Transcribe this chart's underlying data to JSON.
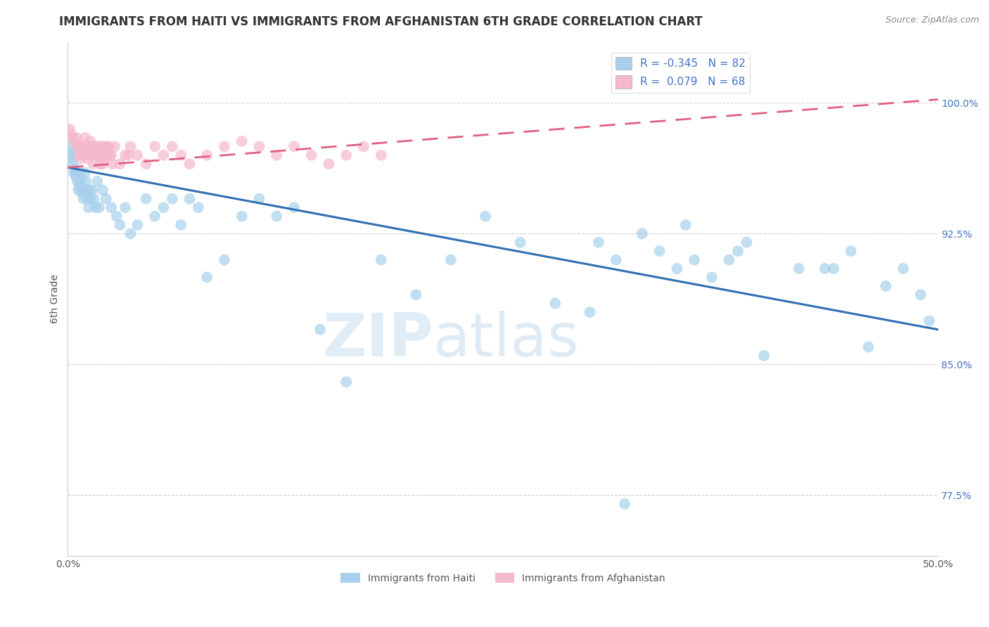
{
  "title": "IMMIGRANTS FROM HAITI VS IMMIGRANTS FROM AFGHANISTAN 6TH GRADE CORRELATION CHART",
  "source": "Source: ZipAtlas.com",
  "ylabel": "6th Grade",
  "xlim": [
    0.0,
    50.0
  ],
  "ylim": [
    74.0,
    103.5
  ],
  "yticks": [
    77.5,
    85.0,
    92.5,
    100.0
  ],
  "xticks": [
    0.0,
    10.0,
    20.0,
    30.0,
    40.0,
    50.0
  ],
  "xtick_labels": [
    "0.0%",
    "",
    "",
    "",
    "",
    "50.0%"
  ],
  "ytick_labels": [
    "77.5%",
    "85.0%",
    "92.5%",
    "100.0%"
  ],
  "haiti_R": -0.345,
  "haiti_N": 82,
  "afghanistan_R": 0.079,
  "afghanistan_N": 68,
  "haiti_color": "#a8d0ec",
  "afghanistan_color": "#f4b8cc",
  "haiti_line_color": "#3070b3",
  "afghanistan_line_color": "#e06080",
  "label_color": "#4472c4",
  "background_color": "#ffffff",
  "grid_color": "#cccccc",
  "watermark_zip": "ZIP",
  "watermark_atlas": "atlas",
  "haiti_x": [
    0.1,
    0.15,
    0.2,
    0.25,
    0.3,
    0.35,
    0.4,
    0.45,
    0.5,
    0.55,
    0.6,
    0.65,
    0.7,
    0.75,
    0.8,
    0.85,
    0.9,
    0.95,
    1.0,
    1.05,
    1.1,
    1.15,
    1.2,
    1.25,
    1.3,
    1.4,
    1.5,
    1.6,
    1.7,
    1.8,
    2.0,
    2.2,
    2.5,
    2.8,
    3.0,
    3.3,
    3.6,
    4.0,
    4.5,
    5.0,
    5.5,
    6.0,
    6.5,
    7.0,
    7.5,
    8.0,
    9.0,
    10.0,
    11.0,
    12.0,
    13.0,
    14.5,
    16.0,
    18.0,
    20.0,
    22.0,
    24.0,
    26.0,
    28.0,
    30.0,
    32.0,
    34.0,
    35.0,
    36.0,
    37.0,
    38.0,
    39.0,
    40.0,
    42.0,
    44.0,
    45.0,
    46.0,
    48.0,
    49.0,
    30.5,
    31.5,
    33.0,
    35.5,
    38.5,
    43.5,
    47.0,
    49.5
  ],
  "haiti_y": [
    97.5,
    97.0,
    96.8,
    97.2,
    96.5,
    96.0,
    96.2,
    95.8,
    96.0,
    95.5,
    95.0,
    95.2,
    96.0,
    95.5,
    95.0,
    94.8,
    94.5,
    95.0,
    96.0,
    95.5,
    95.0,
    94.5,
    94.0,
    95.0,
    94.5,
    95.0,
    94.5,
    94.0,
    95.5,
    94.0,
    95.0,
    94.5,
    94.0,
    93.5,
    93.0,
    94.0,
    92.5,
    93.0,
    94.5,
    93.5,
    94.0,
    94.5,
    93.0,
    94.5,
    94.0,
    90.0,
    91.0,
    93.5,
    94.5,
    93.5,
    94.0,
    87.0,
    84.0,
    91.0,
    89.0,
    91.0,
    93.5,
    92.0,
    88.5,
    88.0,
    77.0,
    91.5,
    90.5,
    91.0,
    90.0,
    91.0,
    92.0,
    85.5,
    90.5,
    90.5,
    91.5,
    86.0,
    90.5,
    89.0,
    92.0,
    91.0,
    92.5,
    93.0,
    91.5,
    90.5,
    89.5,
    87.5
  ],
  "afghanistan_x": [
    0.1,
    0.2,
    0.3,
    0.4,
    0.5,
    0.6,
    0.7,
    0.8,
    0.9,
    1.0,
    1.1,
    1.2,
    1.3,
    1.4,
    1.5,
    1.6,
    1.7,
    1.8,
    1.9,
    2.0,
    2.1,
    2.2,
    2.3,
    2.5,
    2.7,
    3.0,
    3.3,
    3.6,
    4.0,
    4.5,
    5.0,
    5.5,
    6.0,
    6.5,
    7.0,
    8.0,
    9.0,
    10.0,
    11.0,
    12.0,
    13.0,
    14.0,
    15.0,
    16.0,
    17.0,
    18.0,
    1.05,
    1.15,
    1.25,
    1.35,
    1.45,
    1.55,
    1.65,
    1.75,
    1.85,
    1.95,
    2.05,
    2.15,
    2.25,
    2.35,
    2.45,
    2.55,
    0.55,
    0.65,
    0.75,
    0.85,
    0.95,
    3.5
  ],
  "afghanistan_y": [
    98.5,
    98.2,
    98.0,
    97.8,
    98.0,
    97.5,
    97.2,
    97.5,
    97.0,
    98.0,
    97.5,
    97.0,
    97.8,
    97.5,
    97.2,
    97.5,
    97.0,
    97.5,
    97.0,
    96.5,
    97.5,
    97.0,
    97.5,
    97.0,
    97.5,
    96.5,
    97.0,
    97.5,
    97.0,
    96.5,
    97.5,
    97.0,
    97.5,
    97.0,
    96.5,
    97.0,
    97.5,
    97.8,
    97.5,
    97.0,
    97.5,
    97.0,
    96.5,
    97.0,
    97.5,
    97.0,
    97.2,
    96.8,
    97.5,
    97.0,
    96.5,
    97.2,
    97.5,
    97.0,
    96.5,
    97.5,
    97.0,
    96.8,
    97.2,
    97.5,
    97.0,
    96.5,
    97.5,
    97.0,
    96.8,
    97.2,
    97.5,
    97.0
  ],
  "haiti_trend_x0": 0.0,
  "haiti_trend_y0": 96.3,
  "haiti_trend_x1": 50.0,
  "haiti_trend_y1": 87.0,
  "afg_trend_x0": 0.0,
  "afg_trend_y0": 96.3,
  "afg_trend_x1": 50.0,
  "afg_trend_y1": 100.2
}
